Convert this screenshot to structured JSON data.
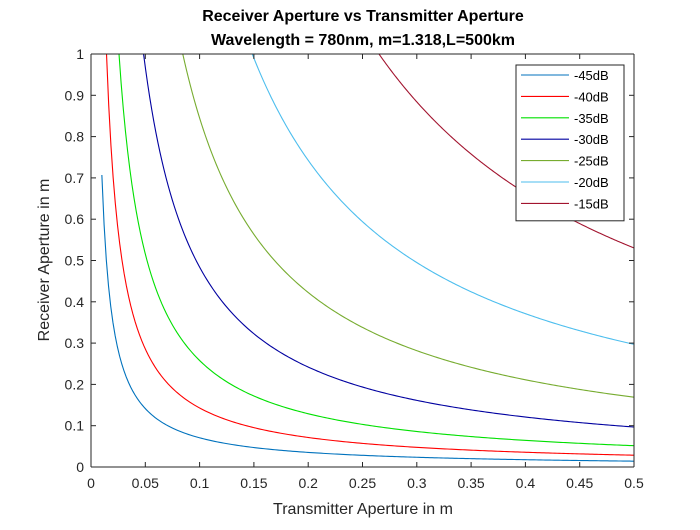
{
  "chart_data": {
    "type": "line",
    "title": "Receiver Aperture vs Transmitter Aperture",
    "subtitle": "Wavelength = 780nm, m=1.318,L=500km",
    "xlabel": "Transmitter Aperture in m",
    "ylabel": "Receiver Aperture in m",
    "xlim": [
      0,
      0.5
    ],
    "ylim": [
      0,
      1
    ],
    "x_ticks": [
      0,
      0.05,
      0.1,
      0.15,
      0.2,
      0.25,
      0.3,
      0.35,
      0.4,
      0.45,
      0.5
    ],
    "x_tick_labels": [
      "0",
      "0.05",
      "0.1",
      "0.15",
      "0.2",
      "0.25",
      "0.3",
      "0.35",
      "0.4",
      "0.45",
      "0.5"
    ],
    "y_ticks": [
      0,
      0.1,
      0.2,
      0.3,
      0.4,
      0.5,
      0.6,
      0.7,
      0.8,
      0.9,
      1
    ],
    "y_tick_labels": [
      "0",
      "0.1",
      "0.2",
      "0.3",
      "0.4",
      "0.5",
      "0.6",
      "0.7",
      "0.8",
      "0.9",
      "1"
    ],
    "grid": false,
    "legend_position": "top-right",
    "relation": "y = k / x (product of apertures constant)",
    "series": [
      {
        "name": "-45dB",
        "color": "#0072bd",
        "k": 0.00707,
        "x_start": 0.01
      },
      {
        "name": "-40dB",
        "color": "#ff0000",
        "k": 0.01429,
        "x_start": 0.0143
      },
      {
        "name": "-35dB",
        "color": "#00e000",
        "k": 0.02579,
        "x_start": 0.0258
      },
      {
        "name": "-30dB",
        "color": "#0000a0",
        "k": 0.0484,
        "x_start": 0.0484
      },
      {
        "name": "-25dB",
        "color": "#77ac30",
        "k": 0.0845,
        "x_start": 0.0845
      },
      {
        "name": "-20dB",
        "color": "#4dbeee",
        "k": 0.1485,
        "x_start": 0.1485
      },
      {
        "name": "-15dB",
        "color": "#a2142f",
        "k": 0.2652,
        "x_start": 0.2652
      }
    ]
  }
}
